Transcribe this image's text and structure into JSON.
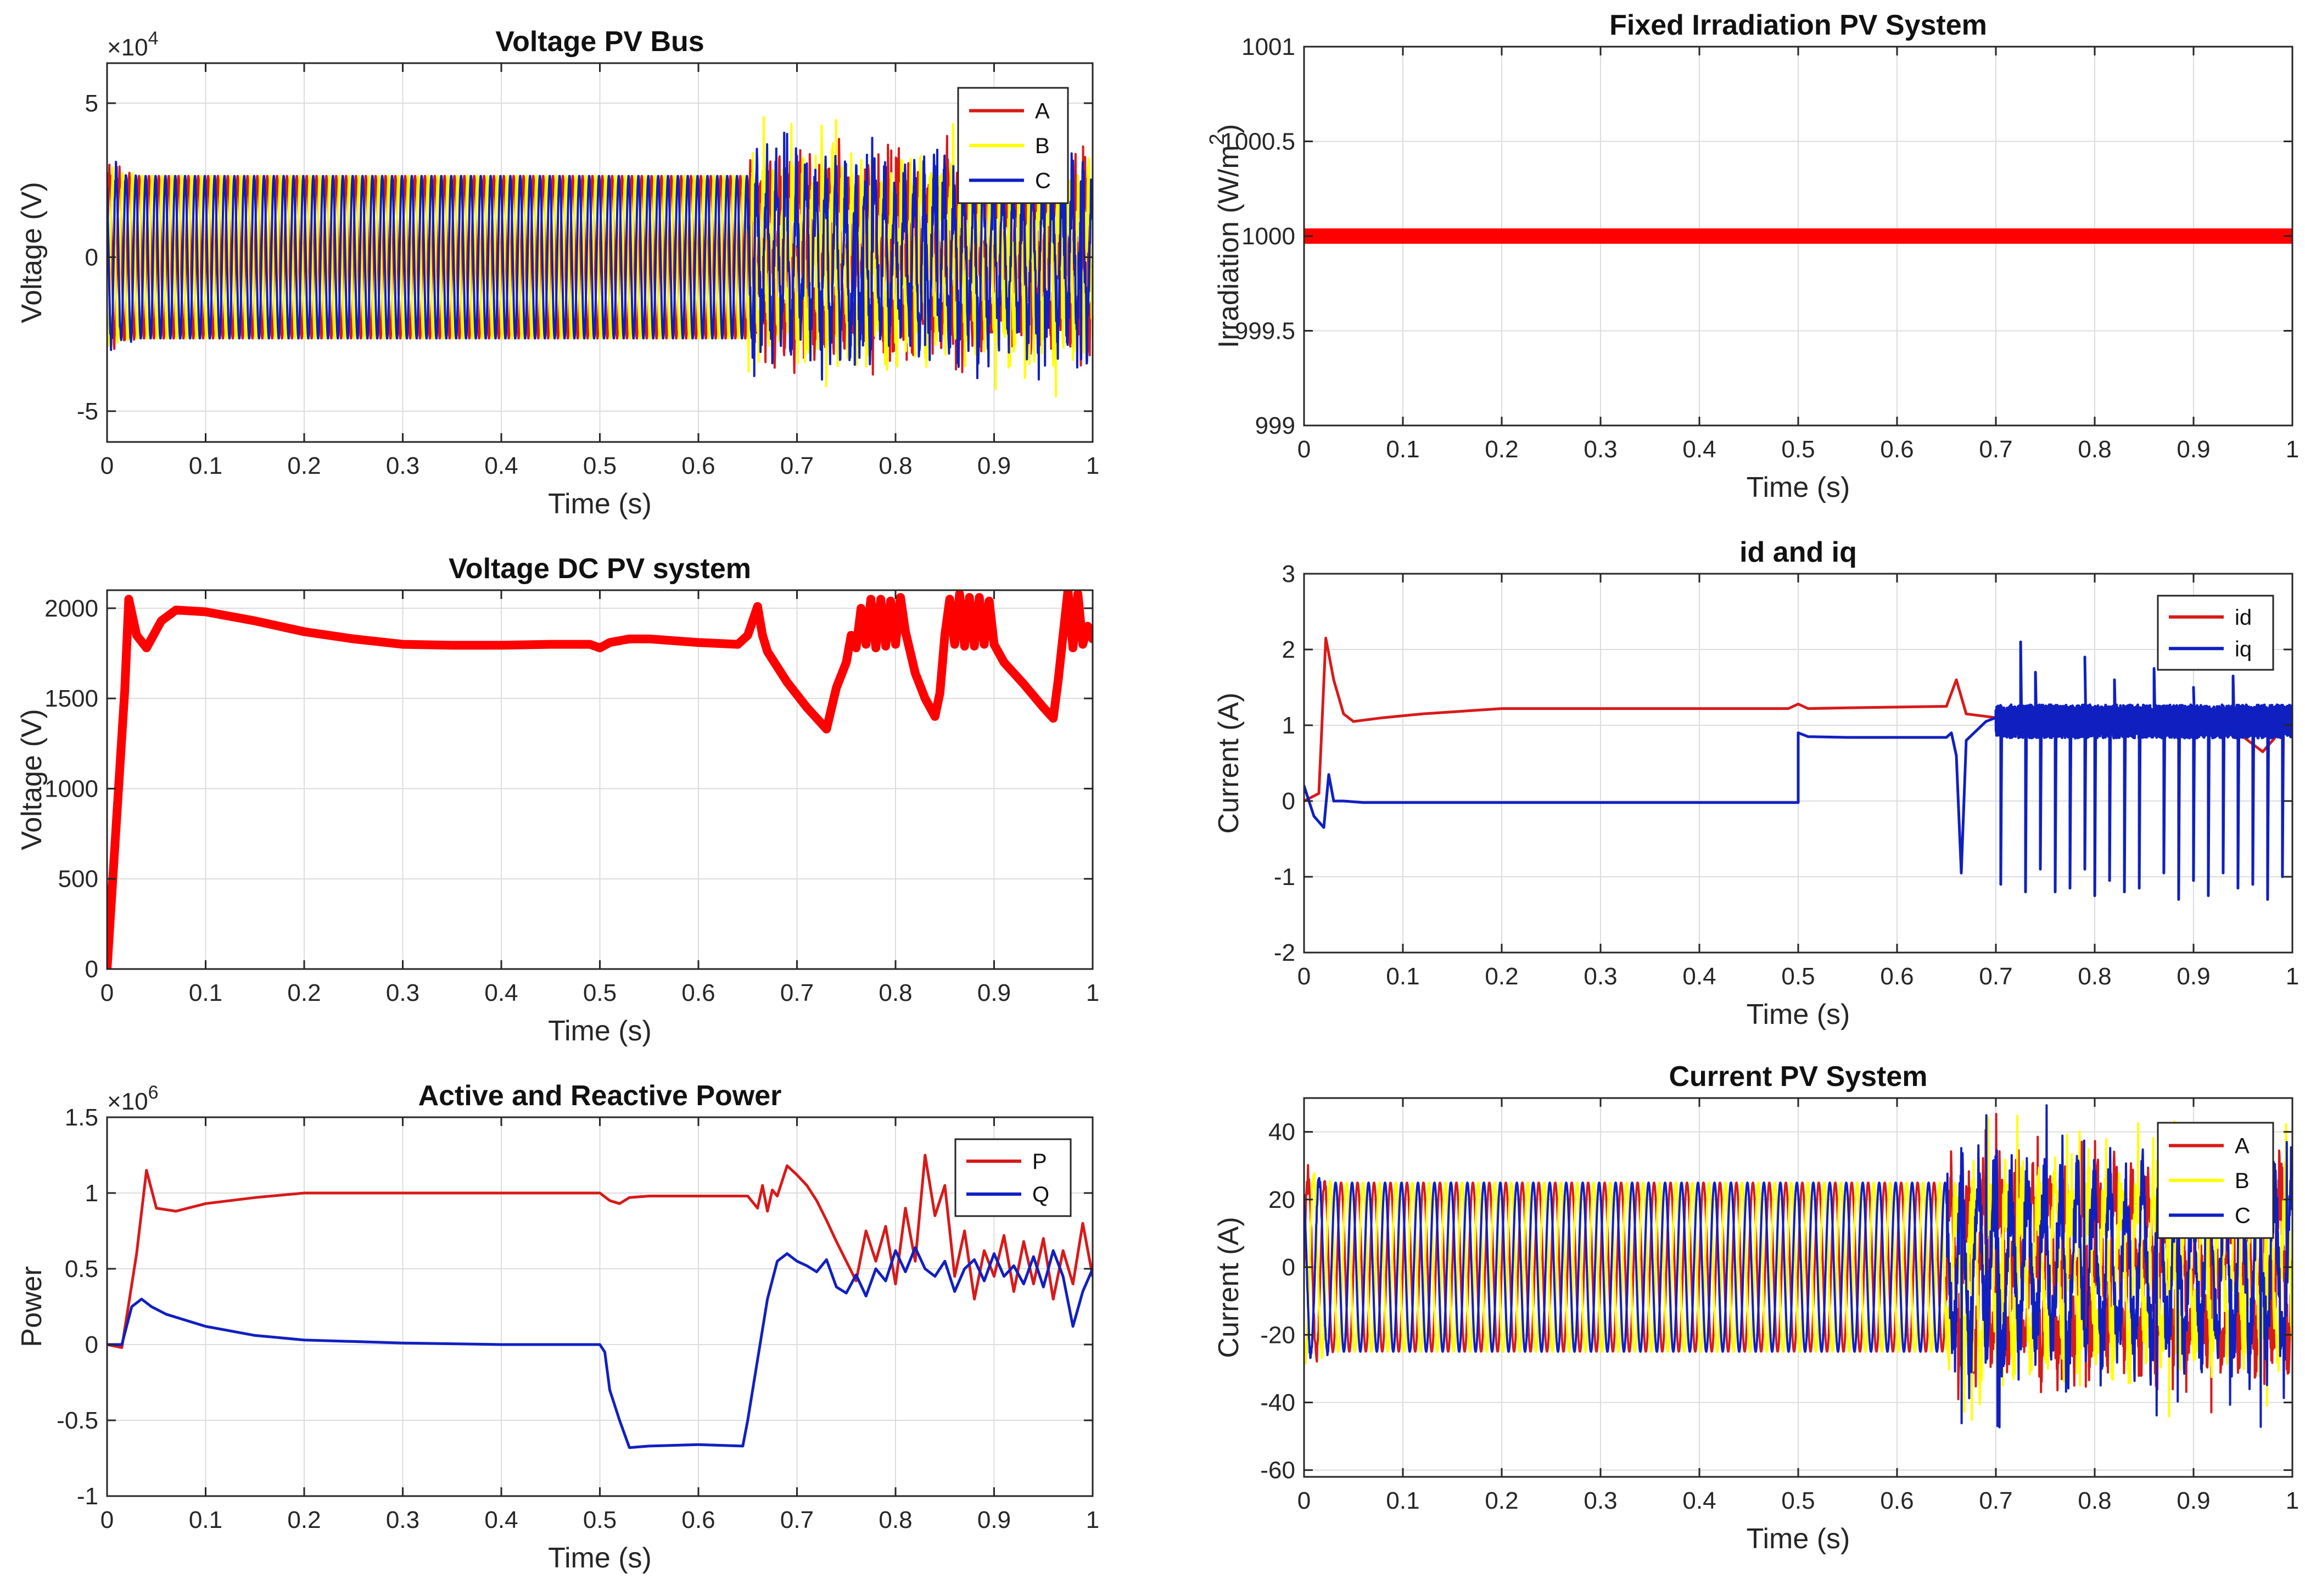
{
  "chart_data": [
    {
      "id": "vpv",
      "type": "line",
      "title": "Voltage PV Bus",
      "xlabel": "Time (s)",
      "ylabel": "Voltage (V)",
      "exponent_label": "×10",
      "exponent_power": "4",
      "xlim": [
        0,
        1
      ],
      "ylim": [
        -6,
        6.3
      ],
      "grid": true,
      "legend": "top-right",
      "x_ticks": [
        0,
        0.1,
        0.2,
        0.3,
        0.4,
        0.5,
        0.6,
        0.7,
        0.8,
        0.9,
        1
      ],
      "x_tick_labels": [
        "0",
        "0.1",
        "0.2",
        "0.3",
        "0.4",
        "0.5",
        "0.6",
        "0.7",
        "0.8",
        "0.9",
        "1"
      ],
      "y_ticks": [
        -5,
        0,
        5
      ],
      "y_tick_labels": [
        "-5",
        "0",
        "5"
      ],
      "series": [
        {
          "name": "A",
          "color": "#d81a1a",
          "kind": "ac",
          "amp": 2.65,
          "phase": 0,
          "cycles": 100,
          "chaos_from": 0.65,
          "chaos_amp": 3.2,
          "seed": 11
        },
        {
          "name": "B",
          "color": "#ffff00",
          "kind": "ac",
          "amp": 2.65,
          "phase": -2.094,
          "cycles": 100,
          "chaos_from": 0.65,
          "chaos_amp": 3.8,
          "seed": 23
        },
        {
          "name": "C",
          "color": "#1020c0",
          "kind": "ac",
          "amp": 2.65,
          "phase": 2.094,
          "cycles": 100,
          "chaos_from": 0.65,
          "chaos_amp": 3.4,
          "seed": 37
        }
      ]
    },
    {
      "id": "irr",
      "type": "line",
      "title": "Fixed Irradiation PV System",
      "xlabel": "Time (s)",
      "ylabel": "Irradiation (W/m",
      "ylabel_sup": "2",
      "ylabel_end": ")",
      "xlim": [
        0,
        1
      ],
      "ylim": [
        999,
        1001
      ],
      "grid": true,
      "legend": "none",
      "x_ticks": [
        0,
        0.1,
        0.2,
        0.3,
        0.4,
        0.5,
        0.6,
        0.7,
        0.8,
        0.9,
        1
      ],
      "x_tick_labels": [
        "0",
        "0.1",
        "0.2",
        "0.3",
        "0.4",
        "0.5",
        "0.6",
        "0.7",
        "0.8",
        "0.9",
        "1"
      ],
      "y_ticks": [
        999,
        999.5,
        1000,
        1000.5,
        1001
      ],
      "y_tick_labels": [
        "999",
        "999.5",
        "1000",
        "1000.5",
        "1001"
      ],
      "series": [
        {
          "name": "",
          "color": "#ff0000",
          "kind": "points",
          "width": 28,
          "x": [
            0,
            1
          ],
          "y": [
            1000,
            1000
          ]
        }
      ]
    },
    {
      "id": "vdc",
      "type": "line",
      "title": "Voltage DC PV system",
      "xlabel": "Time (s)",
      "ylabel": "Voltage (V)",
      "xlim": [
        0,
        1
      ],
      "ylim": [
        0,
        2100
      ],
      "grid": true,
      "legend": "none",
      "x_ticks": [
        0,
        0.1,
        0.2,
        0.3,
        0.4,
        0.5,
        0.6,
        0.7,
        0.8,
        0.9,
        1
      ],
      "x_tick_labels": [
        "0",
        "0.1",
        "0.2",
        "0.3",
        "0.4",
        "0.5",
        "0.6",
        "0.7",
        "0.8",
        "0.9",
        "1"
      ],
      "y_ticks": [
        0,
        500,
        1000,
        1500,
        2000
      ],
      "y_tick_labels": [
        "0",
        "500",
        "1000",
        "1500",
        "2000"
      ],
      "series": [
        {
          "name": "",
          "color": "#ff0000",
          "kind": "points",
          "width": 16,
          "x": [
            0,
            0.018,
            0.022,
            0.03,
            0.04,
            0.055,
            0.07,
            0.1,
            0.15,
            0.2,
            0.25,
            0.3,
            0.35,
            0.4,
            0.45,
            0.49,
            0.5,
            0.51,
            0.53,
            0.55,
            0.6,
            0.64,
            0.65,
            0.66,
            0.665,
            0.67,
            0.69,
            0.71,
            0.72,
            0.73,
            0.74,
            0.75,
            0.755,
            0.76,
            0.765,
            0.77,
            0.775,
            0.78,
            0.785,
            0.79,
            0.795,
            0.8,
            0.805,
            0.81,
            0.82,
            0.83,
            0.84,
            0.845,
            0.85,
            0.855,
            0.86,
            0.865,
            0.87,
            0.875,
            0.88,
            0.885,
            0.89,
            0.895,
            0.9,
            0.91,
            0.93,
            0.95,
            0.96,
            0.965,
            0.97,
            0.975,
            0.98,
            0.985,
            0.99,
            0.995,
            1
          ],
          "y": [
            0,
            1550,
            2050,
            1850,
            1780,
            1930,
            1990,
            1980,
            1930,
            1870,
            1830,
            1800,
            1795,
            1795,
            1800,
            1800,
            1780,
            1810,
            1830,
            1830,
            1810,
            1800,
            1850,
            2010,
            1850,
            1760,
            1590,
            1450,
            1390,
            1330,
            1560,
            1700,
            1850,
            1780,
            2000,
            1800,
            2050,
            1780,
            2050,
            1790,
            2040,
            1800,
            2060,
            1870,
            1640,
            1500,
            1400,
            1530,
            1850,
            2050,
            1800,
            2080,
            1790,
            2060,
            1790,
            2060,
            1800,
            2040,
            1800,
            1700,
            1580,
            1450,
            1390,
            1600,
            1850,
            2100,
            1780,
            2080,
            1800,
            1900,
            1830
          ]
        }
      ]
    },
    {
      "id": "idq",
      "type": "line",
      "title": "id and iq",
      "xlabel": "Time (s)",
      "ylabel": "Current (A)",
      "xlim": [
        0,
        1
      ],
      "ylim": [
        -2,
        3
      ],
      "grid": true,
      "legend": "top-right",
      "x_ticks": [
        0,
        0.1,
        0.2,
        0.3,
        0.4,
        0.5,
        0.6,
        0.7,
        0.8,
        0.9,
        1
      ],
      "x_tick_labels": [
        "0",
        "0.1",
        "0.2",
        "0.3",
        "0.4",
        "0.5",
        "0.6",
        "0.7",
        "0.8",
        "0.9",
        "1"
      ],
      "y_ticks": [
        -2,
        -1,
        0,
        1,
        2,
        3
      ],
      "y_tick_labels": [
        "-2",
        "-1",
        "0",
        "1",
        "2",
        "3"
      ],
      "series": [
        {
          "name": "id",
          "color": "#d81a1a",
          "kind": "points",
          "width": 5,
          "x": [
            0,
            0.015,
            0.022,
            0.03,
            0.04,
            0.05,
            0.08,
            0.12,
            0.2,
            0.3,
            0.4,
            0.49,
            0.5,
            0.51,
            0.55,
            0.6,
            0.65,
            0.66,
            0.67,
            0.7,
            0.75,
            0.8,
            0.85,
            0.9,
            0.95,
            0.97,
            1
          ],
          "y": [
            0,
            0.1,
            2.15,
            1.6,
            1.15,
            1.05,
            1.1,
            1.15,
            1.22,
            1.22,
            1.22,
            1.22,
            1.28,
            1.22,
            1.23,
            1.24,
            1.25,
            1.6,
            1.15,
            1.1,
            1.05,
            1.0,
            0.95,
            0.95,
            0.85,
            0.65,
            1.1
          ]
        },
        {
          "name": "iq",
          "color": "#1020c0",
          "kind": "points",
          "width": 5,
          "x": [
            0,
            0.01,
            0.02,
            0.025,
            0.03,
            0.04,
            0.06,
            0.1,
            0.2,
            0.3,
            0.4,
            0.49,
            0.5,
            0.5,
            0.51,
            0.55,
            0.6,
            0.65,
            0.655,
            0.66,
            0.665,
            0.67,
            0.69,
            0.7
          ],
          "y": [
            0.2,
            -0.2,
            -0.35,
            0.35,
            0.0,
            0.0,
            -0.02,
            -0.02,
            -0.02,
            -0.02,
            -0.02,
            -0.02,
            -0.02,
            0.9,
            0.85,
            0.84,
            0.84,
            0.84,
            0.9,
            0.6,
            -0.95,
            0.8,
            1.05,
            1.1
          ],
          "burst": {
            "from": 0.7,
            "to": 1.0,
            "amp": 0.2,
            "center": 1.05,
            "dips": [
              0.705,
              0.73,
              0.745,
              0.76,
              0.775,
              0.79,
              0.8,
              0.815,
              0.83,
              0.845,
              0.87,
              0.885,
              0.9,
              0.915,
              0.93,
              0.945,
              0.96,
              0.975,
              0.99
            ],
            "dip_depth": [
              -1.1,
              -1.2,
              -0.9,
              -1.2,
              -1.15,
              -0.9,
              -1.25,
              -1.05,
              -1.2,
              -1.15,
              -0.95,
              -1.3,
              -1.05,
              -1.25,
              -0.95,
              -1.15,
              -1.1,
              -1.3,
              -1.0
            ],
            "spikes": [
              0.725,
              0.74,
              0.79,
              0.82,
              0.86,
              0.9,
              0.94
            ],
            "spike_height": [
              2.1,
              1.7,
              1.9,
              1.6,
              1.75,
              1.5,
              1.65
            ],
            "seed": 53
          }
        }
      ]
    },
    {
      "id": "pq",
      "type": "line",
      "title": "Active and Reactive Power",
      "xlabel": "Time (s)",
      "ylabel": "Power",
      "exponent_label": "×10",
      "exponent_power": "6",
      "xlim": [
        0,
        1
      ],
      "ylim": [
        -1,
        1.5
      ],
      "grid": true,
      "legend": "top-right",
      "x_ticks": [
        0,
        0.1,
        0.2,
        0.3,
        0.4,
        0.5,
        0.6,
        0.7,
        0.8,
        0.9,
        1
      ],
      "x_tick_labels": [
        "0",
        "0.1",
        "0.2",
        "0.3",
        "0.4",
        "0.5",
        "0.6",
        "0.7",
        "0.8",
        "0.9",
        "1"
      ],
      "y_ticks": [
        -1,
        -0.5,
        0,
        0.5,
        1,
        1.5
      ],
      "y_tick_labels": [
        "-1",
        "-0.5",
        "0",
        "0.5",
        "1",
        "1.5"
      ],
      "series": [
        {
          "name": "P",
          "color": "#d81a1a",
          "kind": "points",
          "width": 5,
          "x": [
            0,
            0.015,
            0.03,
            0.04,
            0.05,
            0.07,
            0.1,
            0.15,
            0.2,
            0.3,
            0.4,
            0.5,
            0.51,
            0.52,
            0.53,
            0.55,
            0.6,
            0.65,
            0.66,
            0.665,
            0.67,
            0.675,
            0.68,
            0.69,
            0.7,
            0.71,
            0.72,
            0.73,
            0.74,
            0.75,
            0.76,
            0.77,
            0.78,
            0.79,
            0.8,
            0.81,
            0.82,
            0.83,
            0.84,
            0.85,
            0.86,
            0.87,
            0.88,
            0.89,
            0.9,
            0.91,
            0.92,
            0.93,
            0.94,
            0.95,
            0.96,
            0.97,
            0.98,
            0.99,
            1
          ],
          "y": [
            0,
            -0.02,
            0.6,
            1.15,
            0.9,
            0.88,
            0.93,
            0.97,
            1.0,
            1.0,
            1.0,
            1.0,
            0.95,
            0.93,
            0.97,
            0.98,
            0.98,
            0.98,
            0.9,
            1.05,
            0.88,
            1.02,
            0.98,
            1.18,
            1.12,
            1.05,
            0.95,
            0.82,
            0.68,
            0.55,
            0.42,
            0.75,
            0.55,
            0.78,
            0.4,
            0.9,
            0.55,
            1.25,
            0.85,
            1.05,
            0.45,
            0.75,
            0.3,
            0.62,
            0.45,
            0.72,
            0.35,
            0.68,
            0.4,
            0.7,
            0.3,
            0.62,
            0.4,
            0.8,
            0.45
          ]
        },
        {
          "name": "Q",
          "color": "#1020c0",
          "kind": "points",
          "width": 5,
          "x": [
            0,
            0.015,
            0.025,
            0.035,
            0.045,
            0.06,
            0.1,
            0.15,
            0.2,
            0.3,
            0.4,
            0.5,
            0.505,
            0.51,
            0.52,
            0.53,
            0.55,
            0.6,
            0.645,
            0.65,
            0.66,
            0.67,
            0.68,
            0.69,
            0.7,
            0.71,
            0.72,
            0.73,
            0.74,
            0.75,
            0.76,
            0.77,
            0.78,
            0.79,
            0.8,
            0.81,
            0.82,
            0.83,
            0.84,
            0.85,
            0.86,
            0.87,
            0.88,
            0.89,
            0.9,
            0.91,
            0.92,
            0.93,
            0.94,
            0.95,
            0.96,
            0.97,
            0.98,
            0.99,
            1
          ],
          "y": [
            0,
            0.0,
            0.25,
            0.3,
            0.25,
            0.2,
            0.12,
            0.06,
            0.03,
            0.01,
            0.0,
            0.0,
            -0.05,
            -0.3,
            -0.5,
            -0.68,
            -0.67,
            -0.66,
            -0.67,
            -0.5,
            -0.1,
            0.3,
            0.55,
            0.6,
            0.55,
            0.52,
            0.48,
            0.56,
            0.38,
            0.34,
            0.46,
            0.32,
            0.5,
            0.42,
            0.62,
            0.48,
            0.64,
            0.5,
            0.45,
            0.55,
            0.35,
            0.5,
            0.56,
            0.42,
            0.6,
            0.45,
            0.52,
            0.4,
            0.58,
            0.38,
            0.62,
            0.45,
            0.12,
            0.35,
            0.5
          ]
        }
      ]
    },
    {
      "id": "ipv",
      "type": "line",
      "title": "Current PV System",
      "xlabel": "Time (s)",
      "ylabel": "Current (A)",
      "xlim": [
        0,
        1
      ],
      "ylim": [
        -62,
        50
      ],
      "grid": true,
      "legend": "top-right",
      "x_ticks": [
        0,
        0.1,
        0.2,
        0.3,
        0.4,
        0.5,
        0.6,
        0.7,
        0.8,
        0.9,
        1
      ],
      "x_tick_labels": [
        "0",
        "0.1",
        "0.2",
        "0.3",
        "0.4",
        "0.5",
        "0.6",
        "0.7",
        "0.8",
        "0.9",
        "1"
      ],
      "y_ticks": [
        -60,
        -40,
        -20,
        0,
        20,
        40
      ],
      "y_tick_labels": [
        "-60",
        "-40",
        "-20",
        "0",
        "20",
        "40"
      ],
      "series": [
        {
          "name": "A",
          "color": "#d81a1a",
          "kind": "ac",
          "amp": 25,
          "phase": 0,
          "cycles": 60,
          "chaos_from": 0.65,
          "chaos_amp": 40,
          "seed": 71
        },
        {
          "name": "B",
          "color": "#ffff00",
          "kind": "ac",
          "amp": 25,
          "phase": -2.094,
          "cycles": 60,
          "chaos_from": 0.65,
          "chaos_amp": 38,
          "seed": 83
        },
        {
          "name": "C",
          "color": "#1020c0",
          "kind": "ac",
          "amp": 25,
          "phase": 2.094,
          "cycles": 60,
          "chaos_from": 0.65,
          "chaos_amp": 40,
          "seed": 97
        }
      ]
    }
  ]
}
